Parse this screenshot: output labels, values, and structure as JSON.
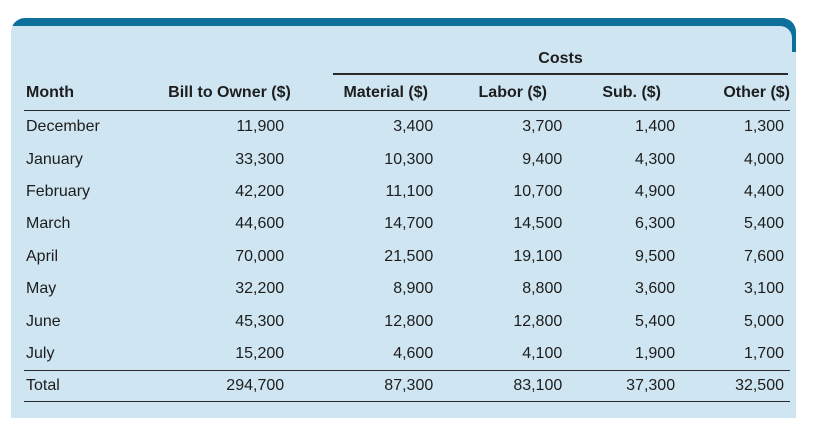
{
  "table": {
    "group_header": "Costs",
    "columns": [
      "Month",
      "Bill to Owner ($)",
      "Material ($)",
      "Labor ($)",
      "Sub. ($)",
      "Other ($)"
    ],
    "rows": [
      [
        "December",
        "11,900",
        "3,400",
        "3,700",
        "1,400",
        "1,300"
      ],
      [
        "January",
        "33,300",
        "10,300",
        "9,400",
        "4,300",
        "4,000"
      ],
      [
        "February",
        "42,200",
        "11,100",
        "10,700",
        "4,900",
        "4,400"
      ],
      [
        "March",
        "44,600",
        "14,700",
        "14,500",
        "6,300",
        "5,400"
      ],
      [
        "April",
        "70,000",
        "21,500",
        "19,100",
        "9,500",
        "7,600"
      ],
      [
        "May",
        "32,200",
        "8,900",
        "8,800",
        "3,600",
        "3,100"
      ],
      [
        "June",
        "45,300",
        "12,800",
        "12,800",
        "5,400",
        "5,000"
      ],
      [
        "July",
        "15,200",
        "4,600",
        "4,100",
        "1,900",
        "1,700"
      ]
    ],
    "total": [
      "Total",
      "294,700",
      "87,300",
      "83,100",
      "37,300",
      "32,500"
    ]
  },
  "colors": {
    "panel_background": "#cfe6f2",
    "top_bar": "#0d6f9c"
  }
}
